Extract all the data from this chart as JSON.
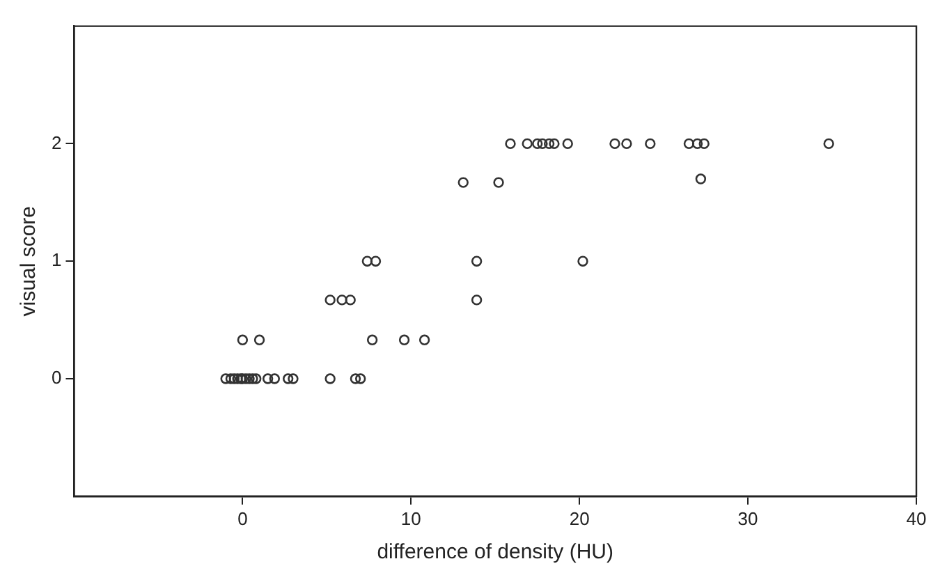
{
  "chart_data": {
    "type": "scatter",
    "xlabel": "difference of density (HU)",
    "ylabel": "visual score",
    "xlim": [
      -10,
      40
    ],
    "ylim": [
      -1,
      3
    ],
    "xticks": [
      0,
      10,
      20,
      30,
      40
    ],
    "yticks": [
      0,
      1,
      2
    ],
    "grid": false,
    "legend": false,
    "marker": "circle",
    "series": [
      {
        "color": "#333333",
        "x": [
          -1.0,
          -0.7,
          -0.5,
          -0.3,
          -0.1,
          0,
          0.2,
          0.4,
          0.6,
          0.8,
          1.5,
          1.9,
          2.7,
          3.0,
          5.2,
          6.7,
          7.0,
          0,
          1.0,
          7.7,
          9.6,
          10.8,
          5.2,
          5.9,
          6.4,
          13.9,
          7.4,
          7.9,
          13.9,
          20.2,
          13.1,
          15.2,
          27.2,
          15.9,
          16.9,
          17.5,
          17.8,
          18.2,
          18.5,
          19.3,
          22.1,
          22.8,
          24.2,
          26.5,
          27.0,
          27.4,
          34.8
        ],
        "values": [
          0,
          0,
          0,
          0,
          0,
          0,
          0,
          0,
          0,
          0,
          0,
          0,
          0,
          0,
          0,
          0,
          0,
          0.33,
          0.33,
          0.33,
          0.33,
          0.33,
          0.67,
          0.67,
          0.67,
          0.67,
          1,
          1,
          1,
          1,
          1.67,
          1.67,
          1.7,
          2,
          2,
          2,
          2,
          2,
          2,
          2,
          2,
          2,
          2,
          2,
          2,
          2,
          2
        ]
      }
    ]
  }
}
